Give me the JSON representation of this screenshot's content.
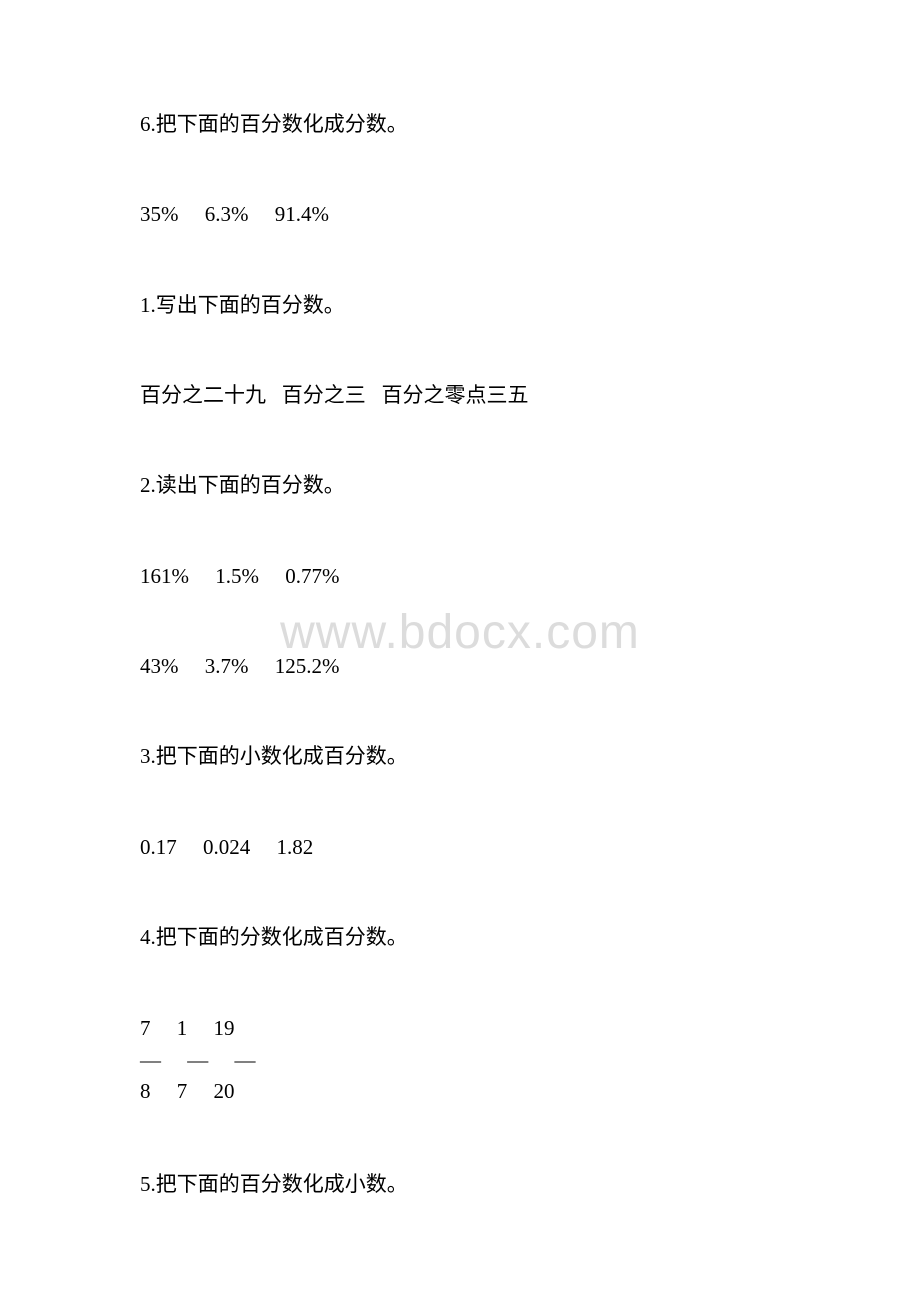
{
  "watermark": "www.bdocx.com",
  "colors": {
    "text": "#000000",
    "background": "#ffffff",
    "watermark": "#dcdcdc"
  },
  "lines": {
    "l1": "6.把下面的百分数化成分数。",
    "l2": "35%     6.3%     91.4%",
    "l3": "1.写出下面的百分数。",
    "l4": "百分之二十九   百分之三   百分之零点三五",
    "l5": "2.读出下面的百分数。",
    "l6": "161%     1.5%     0.77%",
    "l7": "43%     3.7%     125.2%",
    "l8": "3.把下面的小数化成百分数。",
    "l9": "0.17     0.024     1.82",
    "l10": "4.把下面的分数化成百分数。",
    "frac_top": "7     1     19",
    "frac_mid": "—     —     —",
    "frac_bot": "8     7     20",
    "l11": "5.把下面的百分数化成小数。"
  }
}
